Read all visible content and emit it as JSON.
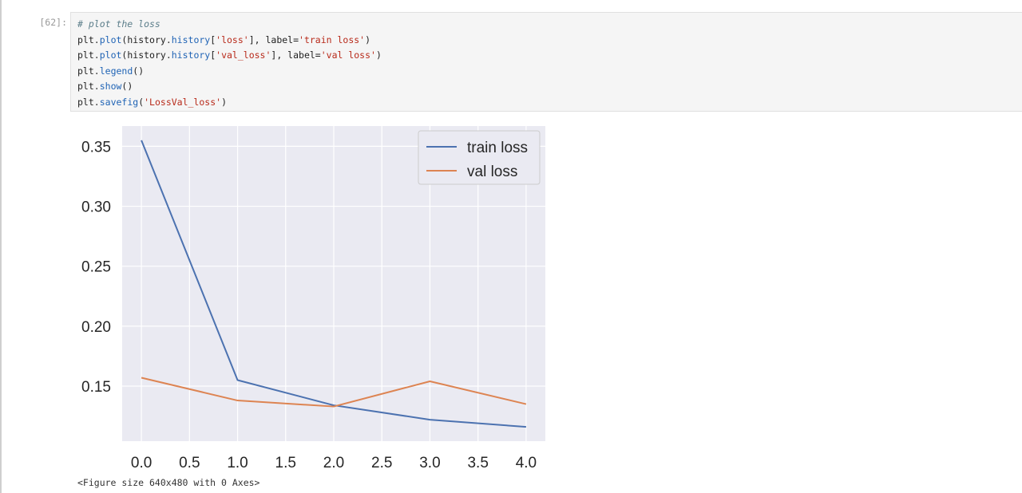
{
  "notebook": {
    "prompt": "[62]:",
    "code_lines": [
      [
        {
          "t": "# plot the loss",
          "c": "comment"
        }
      ],
      [
        {
          "t": "plt",
          "c": "name"
        },
        {
          "t": ".",
          "c": "kw"
        },
        {
          "t": "plot",
          "c": "fn"
        },
        {
          "t": "(history",
          "c": "name"
        },
        {
          "t": ".",
          "c": "kw"
        },
        {
          "t": "history",
          "c": "fn"
        },
        {
          "t": "[",
          "c": "name"
        },
        {
          "t": "'loss'",
          "c": "str"
        },
        {
          "t": "], label=",
          "c": "name"
        },
        {
          "t": "'train loss'",
          "c": "str"
        },
        {
          "t": ")",
          "c": "name"
        }
      ],
      [
        {
          "t": "plt",
          "c": "name"
        },
        {
          "t": ".",
          "c": "kw"
        },
        {
          "t": "plot",
          "c": "fn"
        },
        {
          "t": "(history",
          "c": "name"
        },
        {
          "t": ".",
          "c": "kw"
        },
        {
          "t": "history",
          "c": "fn"
        },
        {
          "t": "[",
          "c": "name"
        },
        {
          "t": "'val_loss'",
          "c": "str"
        },
        {
          "t": "], label=",
          "c": "name"
        },
        {
          "t": "'val loss'",
          "c": "str"
        },
        {
          "t": ")",
          "c": "name"
        }
      ],
      [
        {
          "t": "plt",
          "c": "name"
        },
        {
          "t": ".",
          "c": "kw"
        },
        {
          "t": "legend",
          "c": "fn"
        },
        {
          "t": "()",
          "c": "name"
        }
      ],
      [
        {
          "t": "plt",
          "c": "name"
        },
        {
          "t": ".",
          "c": "kw"
        },
        {
          "t": "show",
          "c": "fn"
        },
        {
          "t": "()",
          "c": "name"
        }
      ],
      [
        {
          "t": "plt",
          "c": "name"
        },
        {
          "t": ".",
          "c": "kw"
        },
        {
          "t": "savefig",
          "c": "fn"
        },
        {
          "t": "(",
          "c": "name"
        },
        {
          "t": "'LossVal_loss'",
          "c": "str"
        },
        {
          "t": ")",
          "c": "name"
        }
      ]
    ],
    "figure_caption": "<Figure size 640x480 with 0 Axes>"
  },
  "chart_data": {
    "type": "line",
    "x": [
      0,
      1,
      2,
      3,
      4
    ],
    "series": [
      {
        "name": "train loss",
        "color": "#4c72b0",
        "values": [
          0.355,
          0.155,
          0.134,
          0.122,
          0.116
        ]
      },
      {
        "name": "val loss",
        "color": "#dd8452",
        "values": [
          0.157,
          0.138,
          0.133,
          0.154,
          0.135
        ]
      }
    ],
    "x_ticks": [
      0.0,
      0.5,
      1.0,
      1.5,
      2.0,
      2.5,
      3.0,
      3.5,
      4.0
    ],
    "x_tick_labels": [
      "0.0",
      "0.5",
      "1.0",
      "1.5",
      "2.0",
      "2.5",
      "3.0",
      "3.5",
      "4.0"
    ],
    "y_ticks": [
      0.15,
      0.2,
      0.25,
      0.3,
      0.35
    ],
    "y_tick_labels": [
      "0.15",
      "0.20",
      "0.25",
      "0.30",
      "0.35"
    ],
    "xlim": [
      -0.2,
      4.2
    ],
    "ylim": [
      0.1041,
      0.3669
    ],
    "title": "",
    "xlabel": "",
    "ylabel": "",
    "grid": true,
    "legend_position": "top-right",
    "background": "#eaeaf2"
  }
}
